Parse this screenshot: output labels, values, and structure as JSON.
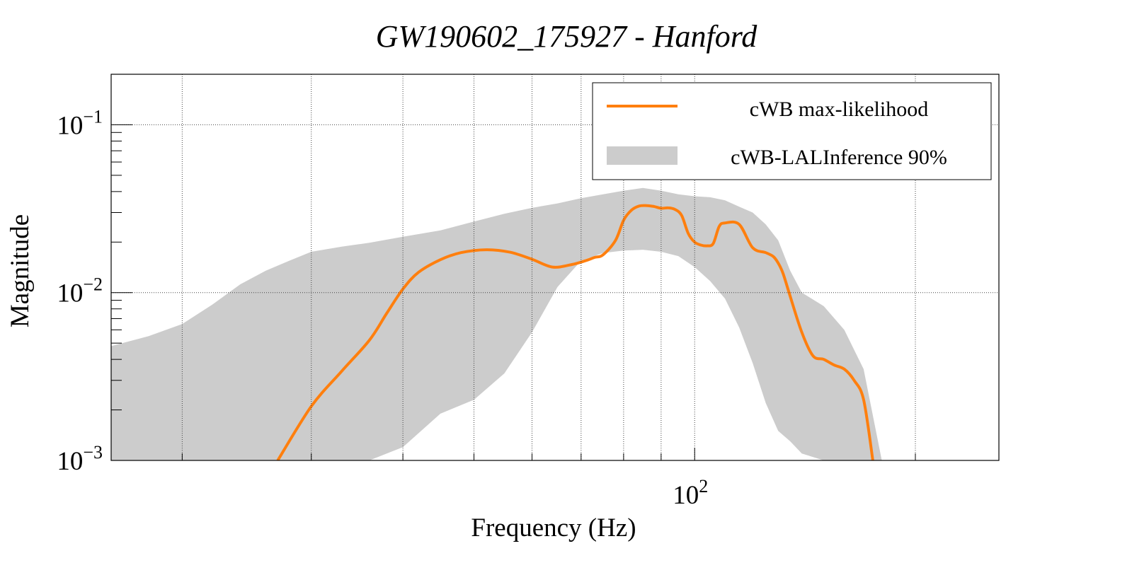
{
  "chart_data": {
    "type": "line",
    "title": "GW190602_175927 - Hanford",
    "xlabel": "Frequency (Hz)",
    "ylabel": "Magnitude",
    "xscale": "log",
    "yscale": "log",
    "xlim": [
      16,
      260
    ],
    "ylim": [
      0.001,
      0.2
    ],
    "grid": true,
    "legend_position": "top-right",
    "x_ticks": [
      {
        "value": 100,
        "base": "10",
        "exp": "2"
      }
    ],
    "y_ticks": [
      {
        "value": 0.001,
        "base": "10",
        "exp": "−3"
      },
      {
        "value": 0.01,
        "base": "10",
        "exp": "−2"
      },
      {
        "value": 0.1,
        "base": "10",
        "exp": "−1"
      }
    ],
    "colors": {
      "line": "#ff7f0e",
      "band": "#cccccc",
      "grid": "#444444",
      "axis": "#000000"
    },
    "series": [
      {
        "name": "cWB max-likelihood",
        "kind": "line",
        "x": [
          27,
          30,
          33,
          36,
          38,
          40,
          42,
          45,
          48,
          52,
          56,
          60,
          64,
          68,
          71,
          73,
          75,
          78,
          80,
          82,
          84,
          86,
          88,
          90,
          92,
          94,
          96,
          98,
          100,
          102,
          104,
          106,
          108,
          110,
          115,
          120,
          125,
          128,
          130,
          132,
          135,
          140,
          145,
          150,
          155,
          160,
          165,
          170,
          175
        ],
        "values": [
          0.001,
          0.0021,
          0.0034,
          0.0052,
          0.0075,
          0.0105,
          0.0132,
          0.0157,
          0.0173,
          0.018,
          0.0174,
          0.0158,
          0.0142,
          0.0147,
          0.0155,
          0.0162,
          0.0168,
          0.0205,
          0.027,
          0.031,
          0.0328,
          0.033,
          0.0326,
          0.0318,
          0.032,
          0.0313,
          0.0288,
          0.0225,
          0.02,
          0.0192,
          0.019,
          0.0196,
          0.0248,
          0.026,
          0.0255,
          0.0185,
          0.0173,
          0.0164,
          0.015,
          0.013,
          0.0095,
          0.0058,
          0.0042,
          0.004,
          0.0037,
          0.0035,
          0.003,
          0.0023,
          0.001
        ]
      },
      {
        "name": "cWB-LALInference 90%",
        "kind": "band",
        "x": [
          16,
          18,
          20,
          22,
          24,
          26,
          28,
          30,
          33,
          36,
          40,
          45,
          50,
          55,
          60,
          65,
          70,
          75,
          80,
          85,
          90,
          95,
          100,
          105,
          110,
          115,
          120,
          125,
          130,
          135,
          140,
          150,
          160,
          170,
          180
        ],
        "upper": [
          0.0048,
          0.0055,
          0.0065,
          0.0085,
          0.0112,
          0.0135,
          0.0155,
          0.0175,
          0.0188,
          0.0198,
          0.0215,
          0.0235,
          0.0265,
          0.0295,
          0.032,
          0.034,
          0.0365,
          0.0385,
          0.0405,
          0.042,
          0.0405,
          0.0385,
          0.0375,
          0.037,
          0.0355,
          0.0325,
          0.03,
          0.0255,
          0.0205,
          0.0135,
          0.01,
          0.0083,
          0.006,
          0.0035,
          0.001
        ],
        "lower": [
          0.001,
          0.001,
          0.001,
          0.001,
          0.001,
          0.001,
          0.001,
          0.001,
          0.001,
          0.001,
          0.0012,
          0.0019,
          0.0023,
          0.0033,
          0.0058,
          0.0108,
          0.0155,
          0.0172,
          0.0178,
          0.018,
          0.0175,
          0.0165,
          0.0142,
          0.0117,
          0.0092,
          0.0062,
          0.0038,
          0.0022,
          0.0015,
          0.0013,
          0.0011,
          0.001,
          0.001,
          0.001,
          0.001
        ]
      }
    ]
  }
}
